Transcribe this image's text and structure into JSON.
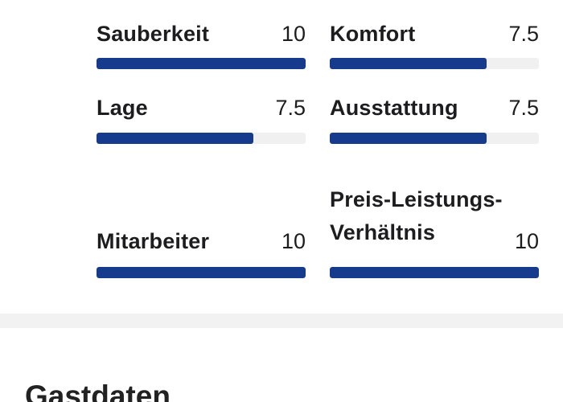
{
  "ratings": [
    {
      "label": "Sauberkeit",
      "score": "10",
      "fill": 1.0
    },
    {
      "label": "Komfort",
      "score": "7.5",
      "fill": 0.75
    },
    {
      "label": "Lage",
      "score": "7.5",
      "fill": 0.75
    },
    {
      "label": "Ausstattung",
      "score": "7.5",
      "fill": 0.75
    },
    {
      "label": "Mitarbeiter",
      "score": "10",
      "fill": 1.0
    },
    {
      "label": "Preis-Leistungs-Verhältnis",
      "score": "10",
      "fill": 1.0
    }
  ],
  "section": {
    "title": "Gastdaten"
  },
  "colors": {
    "bar_fill": "#163a8c",
    "bar_track": "#f0f0f0",
    "divider": "#f2f2f2"
  }
}
